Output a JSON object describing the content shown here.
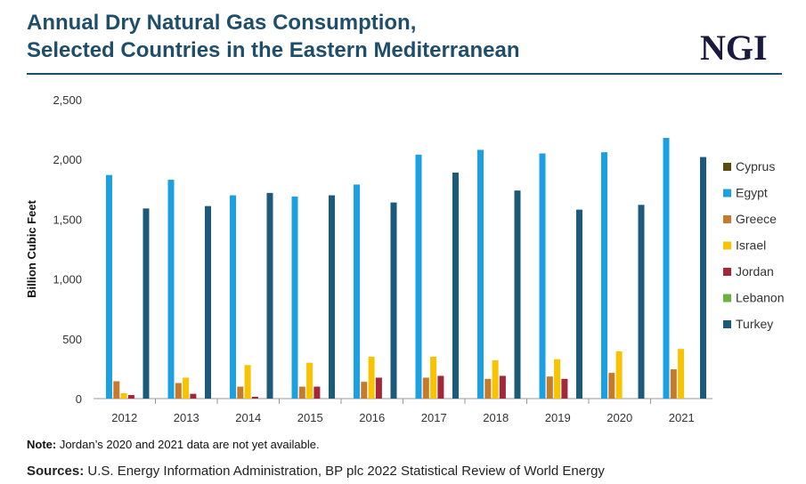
{
  "header": {
    "title_line1": "Annual Dry Natural Gas Consumption,",
    "title_line2": "Selected Countries in the Eastern Mediterranean",
    "logo": "NGI"
  },
  "footer": {
    "note_label": "Note:",
    "note_text": " Jordan’s 2020 and 2021 data are not yet available.",
    "sources_label": "Sources:",
    "sources_text": " U.S. Energy Information Administration, BP plc 2022 Statistical Review of World Energy"
  },
  "chart_data": {
    "type": "bar",
    "title": "Annual Dry Natural Gas Consumption, Selected Countries in the Eastern Mediterranean",
    "xlabel": "",
    "ylabel": "Billion Cubic Feet",
    "ylim": [
      0,
      2500
    ],
    "yticks": [
      0,
      500,
      1000,
      1500,
      2000,
      2500
    ],
    "ytick_labels": [
      "0",
      "500",
      "1,000",
      "1,500",
      "2,000",
      "2,500"
    ],
    "grid": false,
    "legend_position": "right",
    "categories": [
      "2012",
      "2013",
      "2014",
      "2015",
      "2016",
      "2017",
      "2018",
      "2019",
      "2020",
      "2021"
    ],
    "series": [
      {
        "name": "Cyprus",
        "color": "#5a4a0e",
        "values": [
          0,
          0,
          0,
          0,
          0,
          0,
          0,
          0,
          0,
          0
        ]
      },
      {
        "name": "Egypt",
        "color": "#1ba1e2",
        "values": [
          1870,
          1830,
          1700,
          1690,
          1790,
          2040,
          2080,
          2050,
          2060,
          2180
        ]
      },
      {
        "name": "Greece",
        "color": "#c67a2c",
        "values": [
          145,
          130,
          100,
          100,
          140,
          175,
          165,
          185,
          215,
          245
        ]
      },
      {
        "name": "Israel",
        "color": "#f8c300",
        "values": [
          45,
          175,
          280,
          300,
          350,
          350,
          320,
          330,
          395,
          415
        ]
      },
      {
        "name": "Jordan",
        "color": "#a3263a",
        "values": [
          30,
          40,
          15,
          100,
          175,
          190,
          190,
          165,
          null,
          null
        ]
      },
      {
        "name": "Lebanon",
        "color": "#6ab23e",
        "values": [
          0,
          0,
          0,
          0,
          0,
          0,
          0,
          0,
          0,
          0
        ]
      },
      {
        "name": "Turkey",
        "color": "#1b5a7a",
        "values": [
          1590,
          1610,
          1720,
          1700,
          1640,
          1890,
          1740,
          1580,
          1620,
          2020
        ]
      }
    ]
  }
}
